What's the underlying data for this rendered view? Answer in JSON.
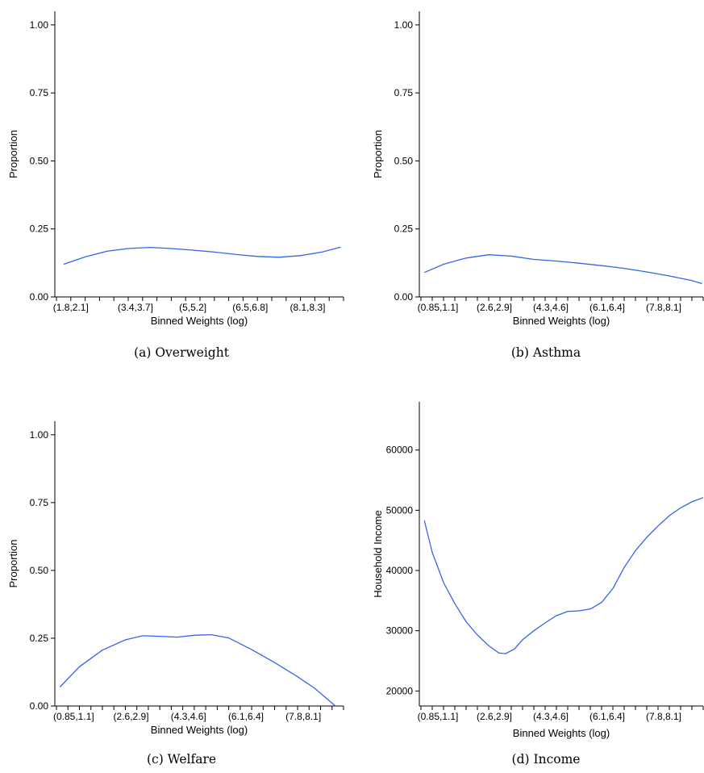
{
  "line_color": "#3366e6",
  "chart_data": [
    {
      "type": "line",
      "caption": "(a) Overweight",
      "xlabel": "Binned Weights (log)",
      "ylabel": "Proportion",
      "ylim": [
        0,
        1.05
      ],
      "yticks": [
        0,
        0.25,
        0.5,
        0.75,
        1.0
      ],
      "ytick_labels": [
        "0.00",
        "0.25",
        "0.50",
        "0.75",
        "1.00"
      ],
      "n_bins": 20,
      "xtick_labels": [
        {
          "bin": 1,
          "label": "(1.8,2.1]"
        },
        {
          "bin": 5.5,
          "label": "(3.4,3.7]"
        },
        {
          "bin": 9.5,
          "label": "(5,5.2]"
        },
        {
          "bin": 13.5,
          "label": "(6.5,6.8]"
        },
        {
          "bin": 17.5,
          "label": "(8.1,8.3]"
        }
      ],
      "series": [
        {
          "x": [
            0.5,
            2,
            3.5,
            5,
            6.5,
            8,
            9.5,
            11,
            12.5,
            14,
            15.5,
            17,
            18.5,
            19.8
          ],
          "values": [
            0.12,
            0.147,
            0.168,
            0.178,
            0.182,
            0.178,
            0.172,
            0.165,
            0.156,
            0.149,
            0.146,
            0.152,
            0.165,
            0.183
          ]
        }
      ]
    },
    {
      "type": "line",
      "caption": "(b) Asthma",
      "xlabel": "Binned Weights (log)",
      "ylabel": "Proportion",
      "ylim": [
        0,
        1.05
      ],
      "yticks": [
        0,
        0.25,
        0.5,
        0.75,
        1.0
      ],
      "ytick_labels": [
        "0.00",
        "0.25",
        "0.50",
        "0.75",
        "1.00"
      ],
      "n_bins": 25,
      "xtick_labels": [
        {
          "bin": 1.5,
          "label": "(0.85,1.1]"
        },
        {
          "bin": 6.5,
          "label": "(2.6,2.9]"
        },
        {
          "bin": 11.5,
          "label": "(4.3,4.6]"
        },
        {
          "bin": 16.5,
          "label": "(6.1,6.4]"
        },
        {
          "bin": 21.5,
          "label": "(7.8,8.1]"
        }
      ],
      "series": [
        {
          "x": [
            0.3,
            2,
            4,
            6,
            8,
            10,
            12,
            14,
            16,
            18,
            20,
            22,
            24,
            24.9
          ],
          "values": [
            0.09,
            0.12,
            0.143,
            0.155,
            0.15,
            0.138,
            0.132,
            0.124,
            0.115,
            0.105,
            0.092,
            0.077,
            0.06,
            0.049
          ]
        }
      ]
    },
    {
      "type": "line",
      "caption": "(c) Welfare",
      "xlabel": "Binned Weights (log)",
      "ylabel": "Proportion",
      "ylim": [
        0,
        1.05
      ],
      "yticks": [
        0,
        0.25,
        0.5,
        0.75,
        1.0
      ],
      "ytick_labels": [
        "0.00",
        "0.25",
        "0.50",
        "0.75",
        "1.00"
      ],
      "n_bins": 25,
      "xtick_labels": [
        {
          "bin": 1.5,
          "label": "(0.85,1.1]"
        },
        {
          "bin": 6.5,
          "label": "(2.6,2.9]"
        },
        {
          "bin": 11.5,
          "label": "(4.3,4.6]"
        },
        {
          "bin": 16.5,
          "label": "(6.1,6.4]"
        },
        {
          "bin": 21.5,
          "label": "(7.8,8.1]"
        }
      ],
      "series": [
        {
          "x": [
            0.3,
            2,
            4,
            6,
            7.5,
            9,
            10.5,
            12,
            13.5,
            15,
            17,
            19,
            21,
            22.5,
            24.3
          ],
          "values": [
            0.07,
            0.145,
            0.206,
            0.244,
            0.259,
            0.257,
            0.254,
            0.261,
            0.263,
            0.251,
            0.208,
            0.16,
            0.108,
            0.065,
            0.0
          ]
        }
      ]
    },
    {
      "type": "line",
      "caption": "(d) Income",
      "xlabel": "Binned Weights (log)",
      "ylabel": "Household Income",
      "ylim": [
        17500,
        68000
      ],
      "yticks": [
        20000,
        30000,
        40000,
        50000,
        60000
      ],
      "ytick_labels": [
        "20000",
        "30000",
        "40000",
        "50000",
        "60000"
      ],
      "n_bins": 25,
      "xtick_labels": [
        {
          "bin": 1.5,
          "label": "(0.85,1.1]"
        },
        {
          "bin": 6.5,
          "label": "(2.6,2.9]"
        },
        {
          "bin": 11.5,
          "label": "(4.3,4.6]"
        },
        {
          "bin": 16.5,
          "label": "(6.1,6.4]"
        },
        {
          "bin": 21.5,
          "label": "(7.8,8.1]"
        }
      ],
      "series": [
        {
          "x": [
            0.3,
            1,
            2,
            3,
            4,
            5,
            6,
            6.9,
            7.5,
            8.3,
            9,
            10,
            11,
            12,
            13,
            14,
            15,
            16,
            17,
            18,
            19,
            20,
            21,
            22,
            23,
            24,
            25
          ],
          "values": [
            48300,
            43000,
            38000,
            34500,
            31500,
            29300,
            27500,
            26300,
            26200,
            27000,
            28500,
            30000,
            31300,
            32500,
            33200,
            33300,
            33600,
            34700,
            37000,
            40500,
            43300,
            45500,
            47400,
            49100,
            50400,
            51400,
            52100
          ]
        }
      ]
    }
  ]
}
